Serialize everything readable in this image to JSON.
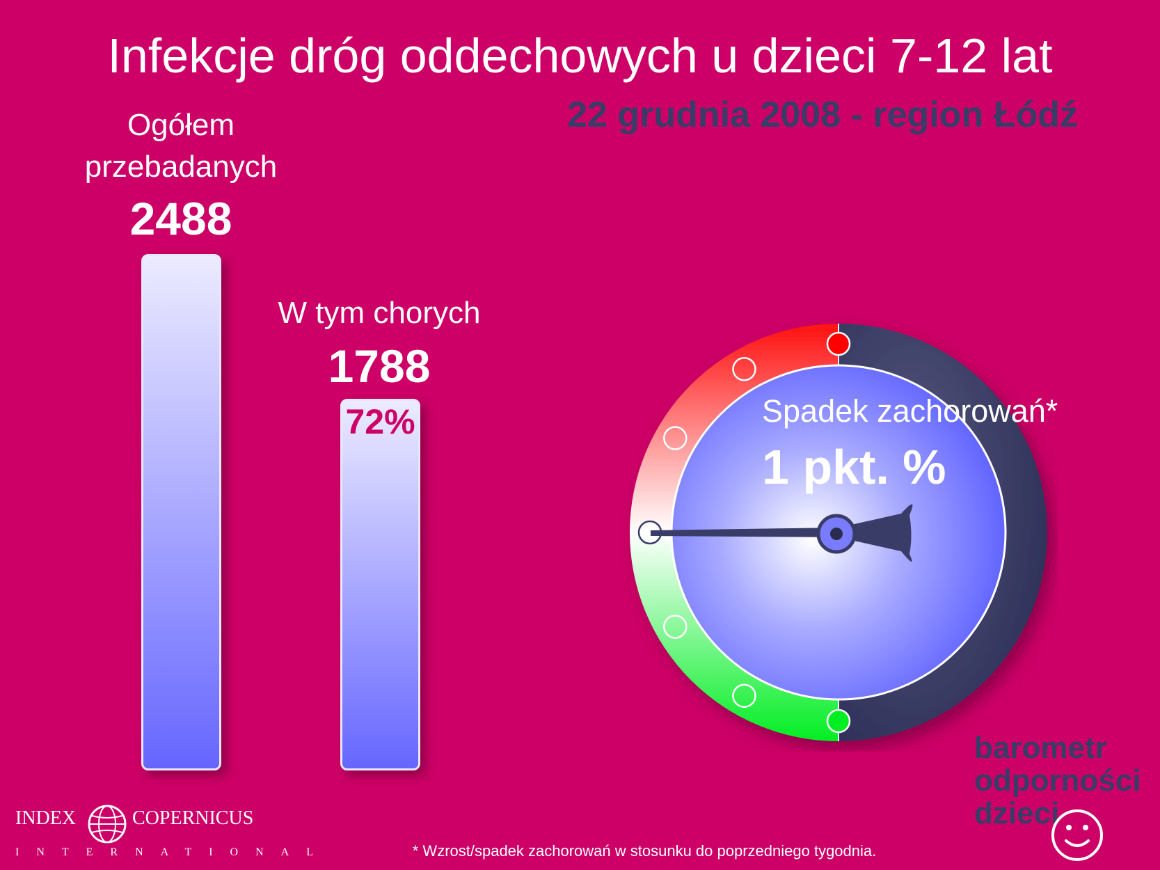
{
  "title": "Infekcje dróg oddechowych u dzieci 7-12 lat",
  "subtitle": "22 grudnia 2008 - region Łódź",
  "total": {
    "label_line1": "Ogółem",
    "label_line2": "przebadanych",
    "value": "2488",
    "bar_fraction": 1.0
  },
  "sick": {
    "label": "W tym chorych",
    "value": "1788",
    "percent": "72%",
    "bar_fraction": 0.72
  },
  "gauge": {
    "label": "Spadek zachorowań*",
    "value": "1 pkt. %",
    "scale_positions": 7,
    "needle_position": 3,
    "colors": {
      "up": "#ff0000",
      "down": "#00ee22",
      "dial": "#6a6cff",
      "rim": "#3a3c68"
    }
  },
  "brand": {
    "line1": "barometr",
    "line2": "odporności",
    "line3": "dzieci"
  },
  "logo": {
    "left": "INDEX",
    "right": "COPERNICUS",
    "sub": "INTERNATIONAL"
  },
  "footnote": "* Wzrost/spadek zachorowań w stosunku do poprzedniego tygodnia.",
  "colors": {
    "background": "#cc0066",
    "accent_dark": "#3a3c68"
  }
}
